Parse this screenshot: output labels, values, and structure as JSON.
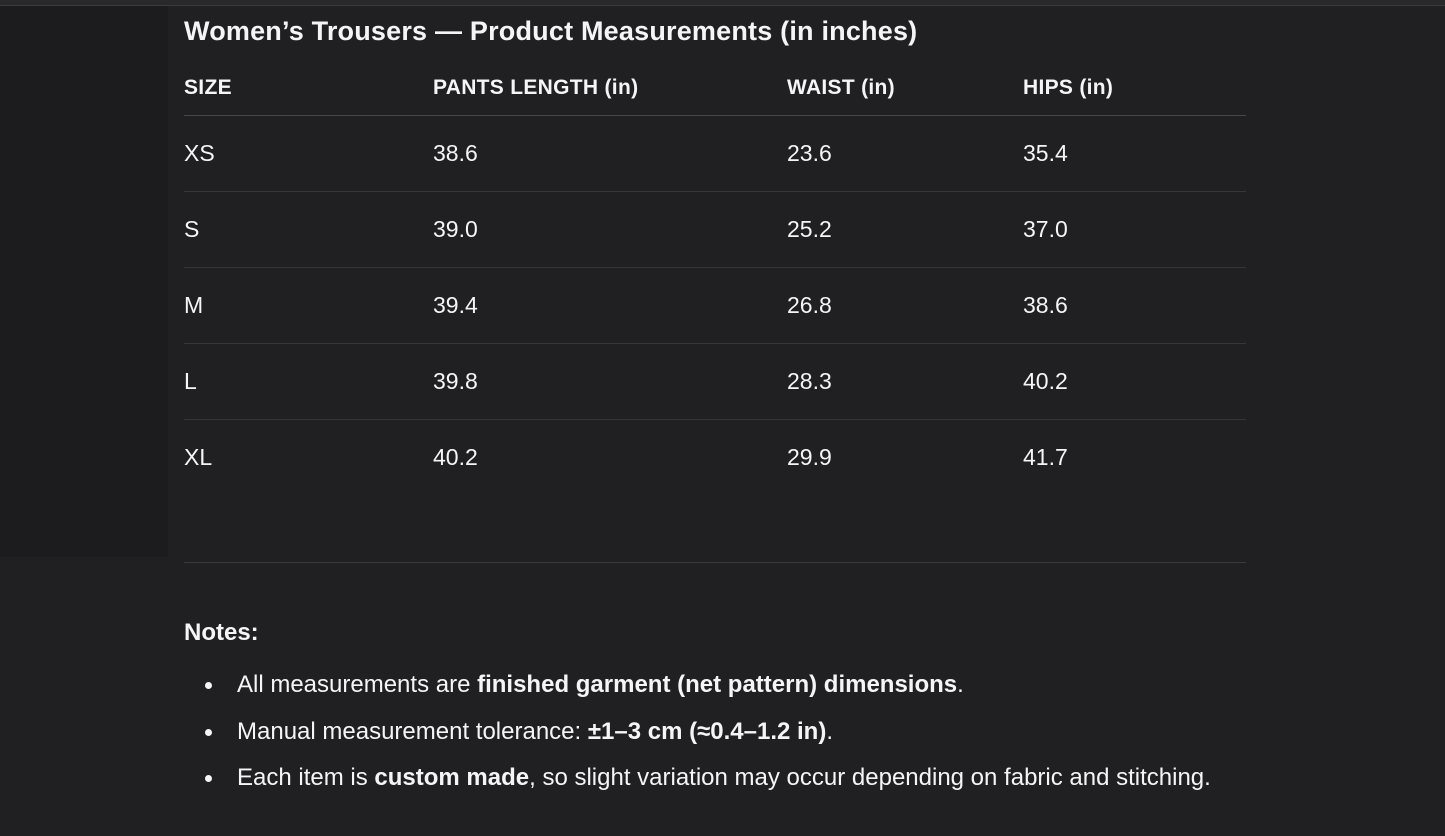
{
  "section": {
    "title": "Women’s Trousers — Product Measurements (in inches)"
  },
  "table": {
    "columns": [
      "SIZE",
      "PANTS LENGTH (in)",
      "WAIST (in)",
      "HIPS (in)"
    ],
    "rows": [
      {
        "cells": [
          "XS",
          "38.6",
          "23.6",
          "35.4"
        ]
      },
      {
        "cells": [
          "S",
          "39.0",
          "25.2",
          "37.0"
        ]
      },
      {
        "cells": [
          "M",
          "39.4",
          "26.8",
          "38.6"
        ]
      },
      {
        "cells": [
          "L",
          "39.8",
          "28.3",
          "40.2"
        ]
      },
      {
        "cells": [
          "XL",
          "40.2",
          "29.9",
          "41.7"
        ]
      }
    ]
  },
  "notes": {
    "heading": "Notes:",
    "items": [
      {
        "parts": [
          {
            "text": "All measurements are ",
            "bold": false
          },
          {
            "text": "finished garment (net pattern) dimensions",
            "bold": true
          },
          {
            "text": ".",
            "bold": false
          }
        ]
      },
      {
        "parts": [
          {
            "text": "Manual measurement tolerance: ",
            "bold": false
          },
          {
            "text": "±1–3 cm (≈0.4–1.2 in)",
            "bold": true
          },
          {
            "text": ".",
            "bold": false
          }
        ]
      },
      {
        "parts": [
          {
            "text": "Each item is ",
            "bold": false
          },
          {
            "text": "custom made",
            "bold": true
          },
          {
            "text": ", so slight variation may occur depending on fabric and stitching.",
            "bold": false
          }
        ]
      }
    ]
  },
  "colors": {
    "background": "#202023",
    "left_pane": "#1c1c1f",
    "top_strip": "#29292c",
    "text": "#f5f5f7",
    "header_border": "#48484c",
    "row_border": "#36363a",
    "section_divider": "#3a3a3e"
  }
}
